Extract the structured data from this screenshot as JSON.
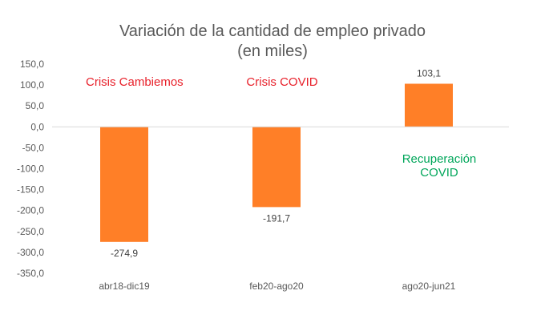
{
  "chart_data": {
    "type": "bar",
    "title": "Variación de la cantidad de empleo privado",
    "subtitle": "(en miles)",
    "categories": [
      "abr18-dic19",
      "feb20-ago20",
      "ago20-jun21"
    ],
    "values": [
      -274.9,
      -191.7,
      103.1
    ],
    "data_labels": [
      "-274,9",
      "-191,7",
      "103,1"
    ],
    "ylim": [
      -350,
      150
    ],
    "yticks": [
      150,
      100,
      50,
      0,
      -50,
      -100,
      -150,
      -200,
      -250,
      -300,
      -350
    ],
    "ytick_labels": [
      "150,0",
      "100,0",
      "50,0",
      "0,0",
      "-50,0",
      "-100,0",
      "-150,0",
      "-200,0",
      "-250,0",
      "-300,0",
      "-350,0"
    ],
    "grid": false,
    "bar_color": "#FF7F27",
    "annotations": [
      {
        "text": "Crisis Cambiemos",
        "color": "#E8202A"
      },
      {
        "text": "Crisis COVID",
        "color": "#E8202A"
      },
      {
        "text": "Recuperación",
        "text2": "COVID",
        "color": "#00A65A"
      }
    ]
  }
}
